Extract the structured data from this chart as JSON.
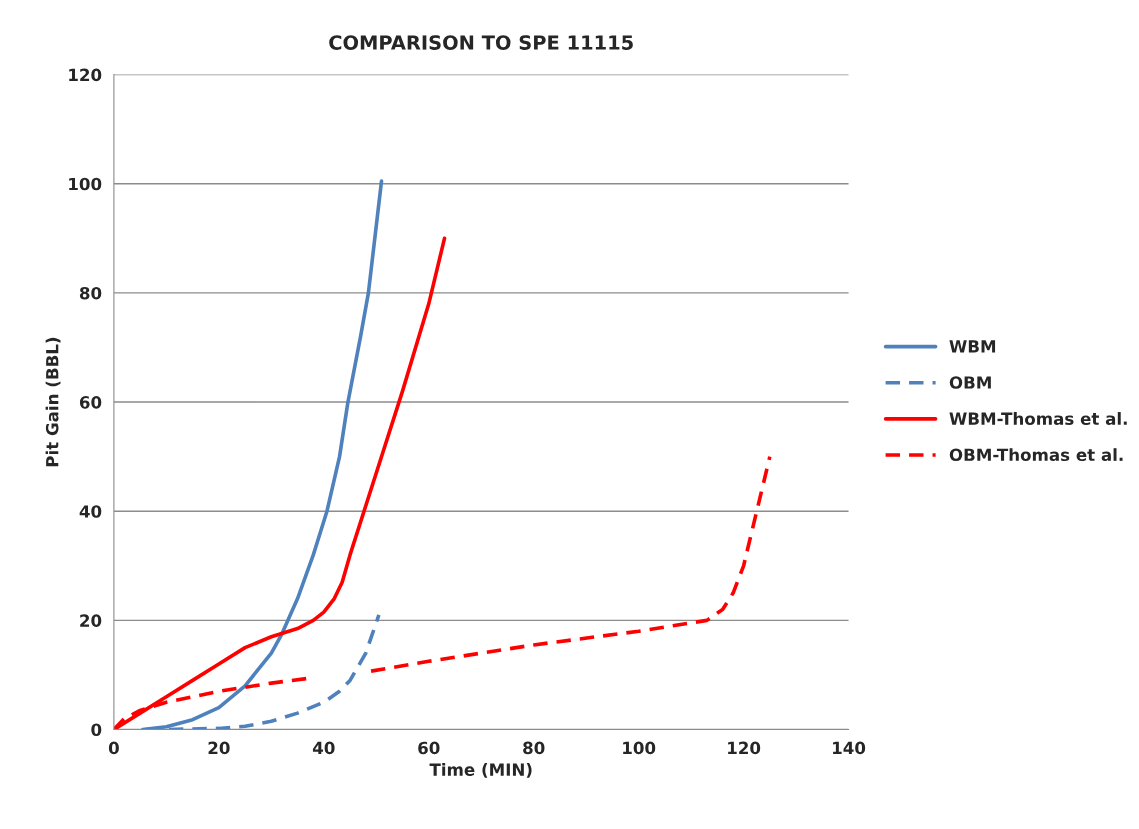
{
  "chart_data": {
    "type": "line",
    "title": "COMPARISON TO SPE 11115",
    "xlabel": "Time (MIN)",
    "ylabel": "Pit Gain (BBL)",
    "xlim": [
      0,
      140
    ],
    "xticks": [
      0,
      20,
      40,
      60,
      80,
      100,
      120,
      140
    ],
    "ylim": [
      0,
      120
    ],
    "yticks": [
      0,
      20,
      40,
      60,
      80,
      100,
      120
    ],
    "grid": "y",
    "legend": "right",
    "marker": "none",
    "series": [
      {
        "name": "WBM",
        "color": "#4f81bd",
        "line_style": "solid",
        "x": [
          5.5,
          10,
          15,
          20,
          25,
          30,
          32,
          35,
          38,
          40.6,
          43,
          44.6,
          47,
          48.5,
          51
        ],
        "values": [
          0,
          0.5,
          1.8,
          4,
          8,
          14,
          17.5,
          24,
          32,
          40,
          50,
          60,
          72,
          80,
          100.5
        ]
      },
      {
        "name": "OBM",
        "color": "#4f81bd",
        "line_style": "dashed",
        "x": [
          6,
          10,
          20,
          25,
          30,
          35,
          40,
          43,
          45,
          48,
          50.5
        ],
        "values": [
          0,
          0,
          0.2,
          0.6,
          1.5,
          3,
          5,
          7,
          9,
          14,
          21
        ]
      },
      {
        "name": "WBM-Thomas et al.",
        "color": "#ff0000",
        "line_style": "solid",
        "x": [
          0,
          5,
          10,
          15,
          20,
          25,
          30,
          35,
          38,
          40,
          42,
          43.5,
          45,
          50,
          55,
          60,
          63
        ],
        "values": [
          0,
          3,
          6,
          9,
          12,
          15,
          17,
          18.5,
          20,
          21.5,
          24,
          27,
          32,
          47,
          62,
          78,
          90
        ]
      },
      {
        "name": "OBM-Thomas et al.",
        "color": "#ff0000",
        "line_style": "dashed",
        "x": [
          0,
          2,
          5,
          10,
          20,
          30,
          38,
          43,
          49,
          60,
          80,
          100,
          113,
          116,
          118,
          120,
          122,
          125
        ],
        "values": [
          0,
          2,
          3.5,
          5,
          7,
          8.5,
          9.5,
          null,
          10.7,
          12.5,
          15.5,
          18,
          20,
          22,
          25,
          30,
          38,
          50
        ]
      }
    ]
  }
}
